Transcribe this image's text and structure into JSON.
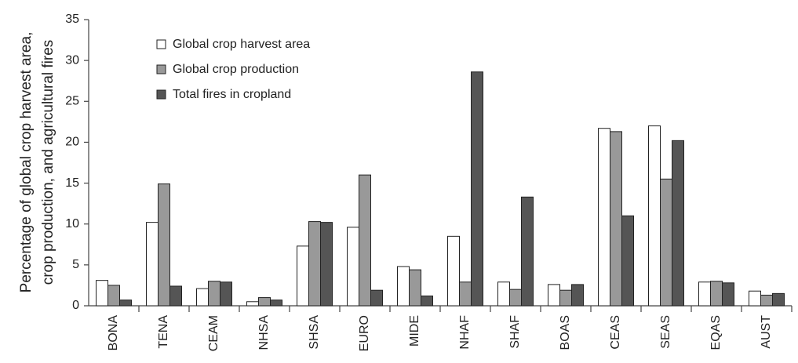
{
  "chart_data": {
    "type": "bar",
    "ylabel": [
      "Percentage of global crop harvest area,",
      "crop production, and agricultural fires"
    ],
    "categories": [
      "BONA",
      "TENA",
      "CEAM",
      "NHSA",
      "SHSA",
      "EURO",
      "MIDE",
      "NHAF",
      "SHAF",
      "BOAS",
      "CEAS",
      "SEAS",
      "EQAS",
      "AUST"
    ],
    "series": [
      {
        "name": "Global crop harvest area",
        "color": "#ffffff",
        "values": [
          3.1,
          10.2,
          2.1,
          0.5,
          7.3,
          9.6,
          4.8,
          8.5,
          2.9,
          2.6,
          21.7,
          22.0,
          2.9,
          1.8
        ]
      },
      {
        "name": "Global crop production",
        "color": "#999999",
        "values": [
          2.5,
          14.9,
          3.0,
          1.0,
          10.3,
          16.0,
          4.4,
          2.9,
          2.0,
          1.9,
          21.3,
          15.5,
          3.0,
          1.3
        ]
      },
      {
        "name": "Total fires in cropland",
        "color": "#555555",
        "values": [
          0.7,
          2.4,
          2.9,
          0.7,
          10.2,
          1.9,
          1.2,
          28.6,
          13.3,
          2.6,
          11.0,
          20.2,
          2.8,
          1.5
        ]
      }
    ],
    "ylim": [
      0,
      35
    ],
    "yticks": [
      0,
      5,
      10,
      15,
      20,
      25,
      30,
      35
    ],
    "grid": false,
    "legend": "upper left"
  }
}
